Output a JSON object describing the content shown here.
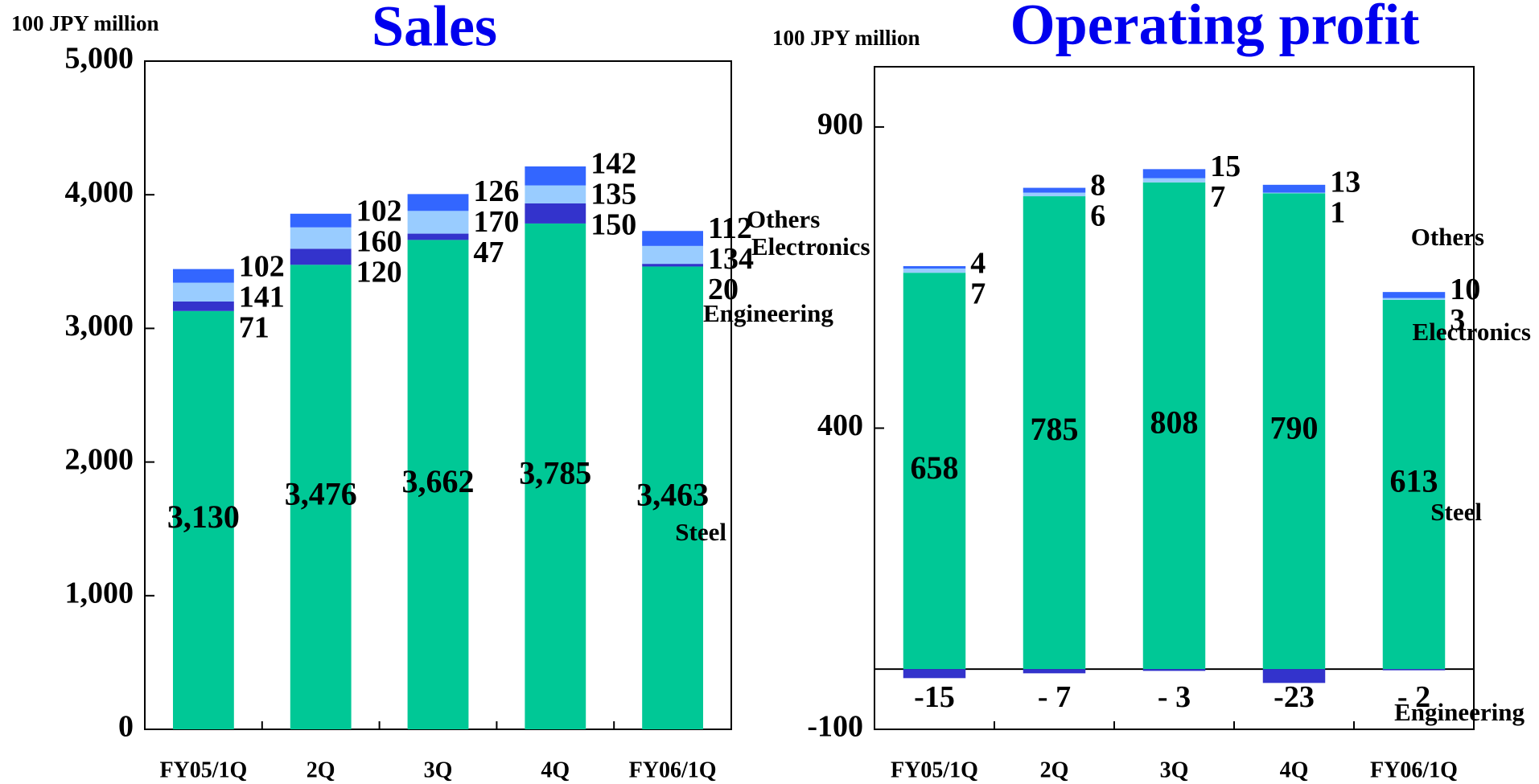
{
  "chart_data": [
    {
      "type": "bar",
      "stacked": true,
      "title": "Sales",
      "y_label": "100 JPY million",
      "categories": [
        "FY05/1Q",
        "2Q",
        "3Q",
        "4Q",
        "FY06/1Q"
      ],
      "series": [
        {
          "name": "Steel",
          "color": "#00c896",
          "values": [
            3130,
            3476,
            3662,
            3785,
            3463
          ],
          "value_labels": [
            "3,130",
            "3,476",
            "3,662",
            "3,785",
            "3,463"
          ]
        },
        {
          "name": "Engineering",
          "color": "#3333cc",
          "values": [
            71,
            120,
            47,
            150,
            20
          ]
        },
        {
          "name": "Electronics",
          "color": "#99ccff",
          "values": [
            141,
            160,
            170,
            135,
            134
          ]
        },
        {
          "name": "Others",
          "color": "#3366ff",
          "values": [
            102,
            102,
            126,
            142,
            112
          ]
        }
      ],
      "ylim": [
        0,
        5000
      ],
      "yticks": [
        0,
        {
          "value": 1000,
          "label": "1,000"
        },
        {
          "value": 2000,
          "label": "2,000"
        },
        {
          "value": 3000,
          "label": "3,000"
        },
        {
          "value": 4000,
          "label": "4,000"
        },
        {
          "value": 5000,
          "label": "5,000"
        }
      ]
    },
    {
      "type": "bar",
      "stacked": true,
      "title": "Operating profit",
      "y_label": "100 JPY million",
      "categories": [
        "FY05/1Q",
        "2Q",
        "3Q",
        "4Q",
        "FY06/1Q"
      ],
      "series": [
        {
          "name": "Steel",
          "color": "#00c896",
          "values": [
            658,
            785,
            808,
            790,
            613
          ]
        },
        {
          "name": "Engineering",
          "color": "#3333cc",
          "values": [
            -15,
            -7,
            -3,
            -23,
            -2
          ],
          "value_labels": [
            "-15",
            "- 7",
            "- 3",
            "-23",
            "- 2"
          ]
        },
        {
          "name": "Electronics",
          "color": "#99ccff",
          "values": [
            7,
            6,
            7,
            1,
            3
          ]
        },
        {
          "name": "Others",
          "color": "#3366ff",
          "values": [
            4,
            8,
            15,
            13,
            10
          ]
        }
      ],
      "ylim": [
        -100,
        1000
      ],
      "yticks": [
        -100,
        400,
        900
      ]
    }
  ]
}
